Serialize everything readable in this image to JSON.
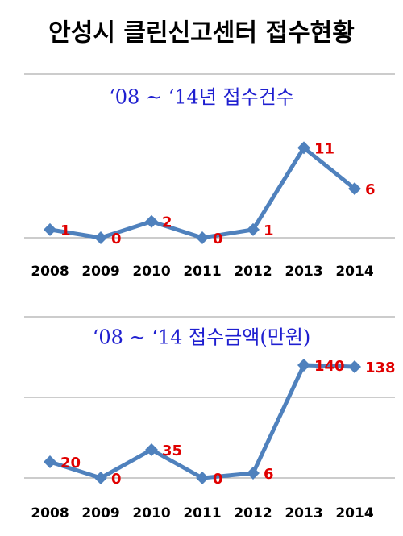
{
  "title": "안성시 클린신고센터 접수현황",
  "chart_data": [
    {
      "type": "line",
      "title": "‘08 ~ ‘14년 접수건수",
      "categories": [
        "2008",
        "2009",
        "2010",
        "2011",
        "2012",
        "2013",
        "2014"
      ],
      "values": [
        1,
        0,
        2,
        0,
        1,
        11,
        6
      ],
      "color": "#4f81bd",
      "label_color": "#e00000",
      "ylim": [
        0,
        20
      ],
      "yticks": [
        0,
        10,
        20
      ],
      "grid": true
    },
    {
      "type": "line",
      "title": "‘08 ~ ‘14 접수금액(만원)",
      "categories": [
        "2008",
        "2009",
        "2010",
        "2011",
        "2012",
        "2013",
        "2014"
      ],
      "values": [
        20,
        0,
        35,
        0,
        6,
        140,
        138
      ],
      "color": "#4f81bd",
      "label_color": "#e00000",
      "ylim": [
        0,
        200
      ],
      "yticks": [
        0,
        100,
        200
      ],
      "grid": true
    }
  ]
}
